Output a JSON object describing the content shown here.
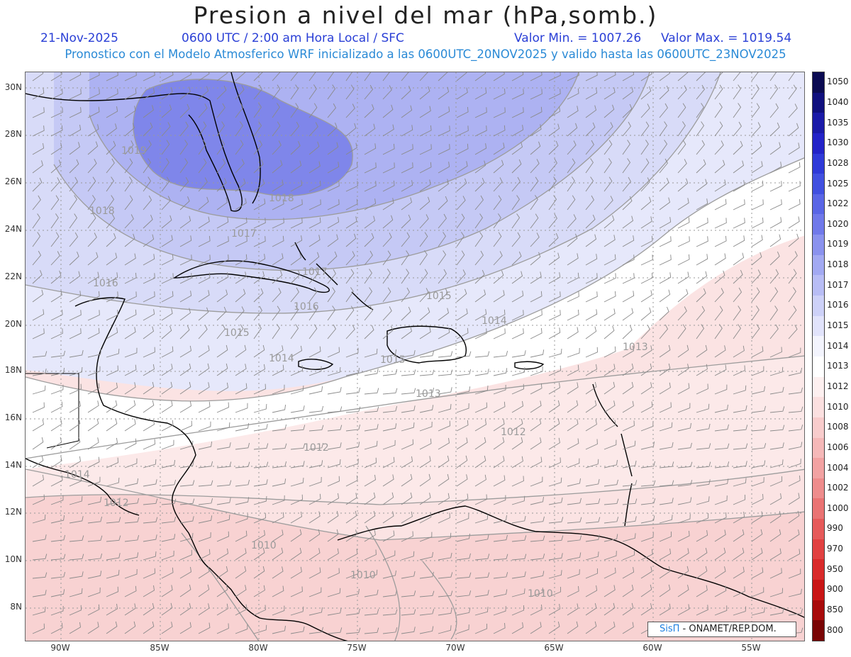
{
  "header": {
    "title": "Presion a nivel del mar (hPa,somb.)",
    "date": "21-Nov-2025",
    "time_info": "0600 UTC / 2:00 am Hora Local / SFC",
    "min_label": "Valor Min. = 1007.26",
    "max_label": "Valor Max. = 1019.54",
    "forecast_info": "Pronostico con el Modelo Atmosferico WRF inicializado a las 0600UTC_20NOV2025 y valido hasta las  0600UTC_23NOV2025"
  },
  "map": {
    "lat_labels": [
      "30N",
      "28N",
      "26N",
      "24N",
      "22N",
      "20N",
      "18N",
      "16N",
      "14N",
      "12N",
      "10N",
      "8N"
    ],
    "lon_labels": [
      "90W",
      "85W",
      "80W",
      "75W",
      "70W",
      "65W",
      "60W",
      "55W"
    ],
    "contour_labels": [
      "1019",
      "1018",
      "1017",
      "1018",
      "1017",
      "1016",
      "1016",
      "1015",
      "1015",
      "1015",
      "1014",
      "1014",
      "1014",
      "1013",
      "1013",
      "1013",
      "1012",
      "1012",
      "1012",
      "1010",
      "1010",
      "1010",
      "1015",
      "1014"
    ]
  },
  "colorbar": {
    "levels": [
      "1050",
      "1040",
      "1035",
      "1030",
      "1028",
      "1025",
      "1022",
      "1020",
      "1019",
      "1018",
      "1017",
      "1016",
      "1015",
      "1014",
      "1013",
      "1012",
      "1010",
      "1008",
      "1006",
      "1004",
      "1002",
      "1000",
      "990",
      "970",
      "950",
      "900",
      "850",
      "800"
    ],
    "colors": [
      "#0b0b52",
      "#10107e",
      "#1a1aa8",
      "#2323c8",
      "#2f3ad8",
      "#4150e0",
      "#5a66e6",
      "#7079ea",
      "#8a92ee",
      "#a2a9f2",
      "#b8bdf5",
      "#cdd1f8",
      "#e1e3fb",
      "#f3f4fd",
      "#ffffff",
      "#fdf0f0",
      "#fbe0e0",
      "#f8cccc",
      "#f5b8b8",
      "#f2a2a2",
      "#ee8c8c",
      "#ea7373",
      "#e65a5a",
      "#e14141",
      "#d92a2a",
      "#c91515",
      "#a80b0b",
      "#7a0505"
    ]
  },
  "credit": {
    "brand": "SisΠ",
    "text": " - ONAMET/REP.DOM."
  }
}
